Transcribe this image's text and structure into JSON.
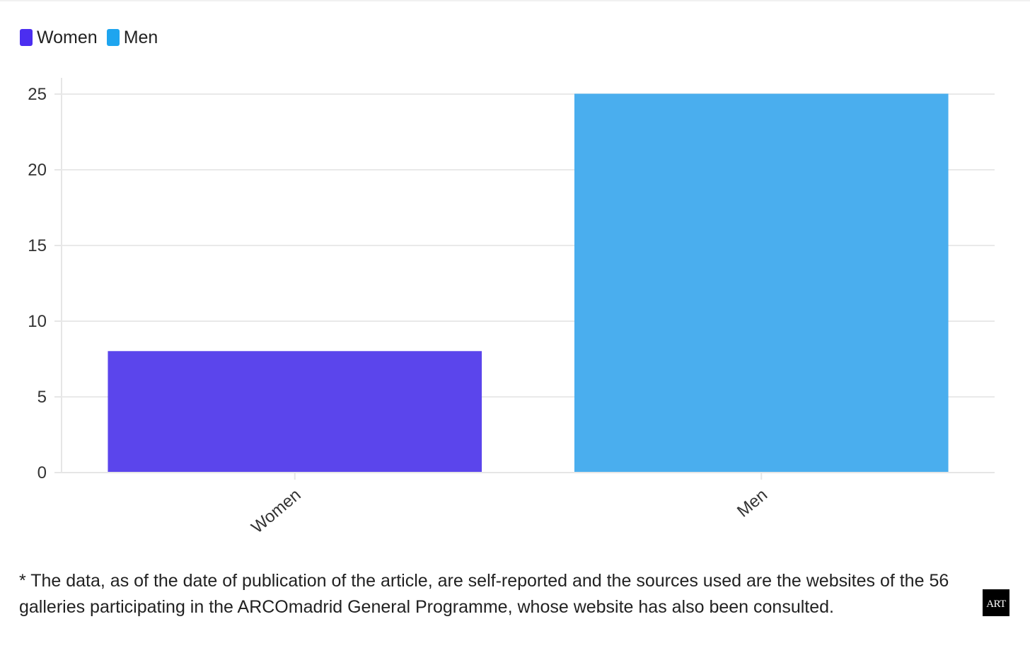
{
  "chart_data": {
    "type": "bar",
    "categories": [
      "Women",
      "Men"
    ],
    "values": [
      8,
      25
    ],
    "colors": [
      "#5b45ec",
      "#4aaeee"
    ],
    "legend": [
      {
        "label": "Women",
        "color": "#4b2ef0"
      },
      {
        "label": "Men",
        "color": "#1ea5ef"
      }
    ],
    "yticks": [
      0,
      5,
      10,
      15,
      20,
      25
    ],
    "ylim": [
      0,
      25
    ],
    "grid": true,
    "legend_position": "top-left"
  },
  "footnote": "* The data, as of the date of publication of the article, are self-reported and the sources used are the websites of the 56 galleries participating in the ARCOmadrid General Programme, whose website has also been consulted.",
  "watermark": {
    "icon": "art-logo-icon",
    "text": "ART"
  }
}
